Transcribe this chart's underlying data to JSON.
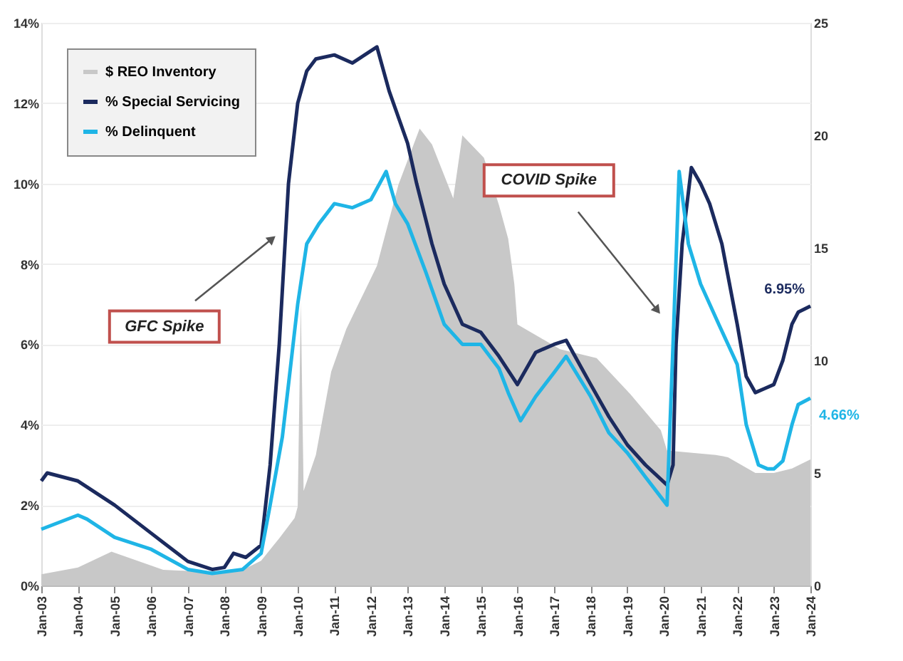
{
  "chart_data": {
    "type": "line",
    "xlim": [
      "2003-01",
      "2024-01"
    ],
    "xticks": [
      {
        "value": "2003-01",
        "label": "Jan-03"
      },
      {
        "value": "2004-01",
        "label": "Jan-04"
      },
      {
        "value": "2005-01",
        "label": "Jan-05"
      },
      {
        "value": "2006-01",
        "label": "Jan-06"
      },
      {
        "value": "2007-01",
        "label": "Jan-07"
      },
      {
        "value": "2008-01",
        "label": "Jan-08"
      },
      {
        "value": "2009-01",
        "label": "Jan-09"
      },
      {
        "value": "2010-01",
        "label": "Jan-10"
      },
      {
        "value": "2011-01",
        "label": "Jan-11"
      },
      {
        "value": "2012-01",
        "label": "Jan-12"
      },
      {
        "value": "2013-01",
        "label": "Jan-13"
      },
      {
        "value": "2014-01",
        "label": "Jan-14"
      },
      {
        "value": "2015-01",
        "label": "Jan-15"
      },
      {
        "value": "2016-01",
        "label": "Jan-16"
      },
      {
        "value": "2017-01",
        "label": "Jan-17"
      },
      {
        "value": "2018-01",
        "label": "Jan-18"
      },
      {
        "value": "2019-01",
        "label": "Jan-19"
      },
      {
        "value": "2020-01",
        "label": "Jan-20"
      },
      {
        "value": "2021-01",
        "label": "Jan-21"
      },
      {
        "value": "2022-01",
        "label": "Jan-22"
      },
      {
        "value": "2023-01",
        "label": "Jan-23"
      },
      {
        "value": "2024-01",
        "label": "Jan-24"
      }
    ],
    "ylim": [
      0,
      14
    ],
    "yticks": [
      {
        "value": 0,
        "label": "0%"
      },
      {
        "value": 2,
        "label": "2%"
      },
      {
        "value": 4,
        "label": "4%"
      },
      {
        "value": 6,
        "label": "6%"
      },
      {
        "value": 8,
        "label": "8%"
      },
      {
        "value": 10,
        "label": "10%"
      },
      {
        "value": 12,
        "label": "12%"
      },
      {
        "value": 14,
        "label": "14%"
      }
    ],
    "y2lim": [
      0,
      25
    ],
    "y2ticks": [
      0,
      5,
      10,
      15,
      20,
      25
    ],
    "grid": "y",
    "legend": "top left",
    "marker": "none",
    "line_style": "solid",
    "series": [
      {
        "name": "$ REO Inventory",
        "type": "area",
        "axis": "y2",
        "color": "#c8c8c8",
        "x": [
          "2003-01",
          "2004-01",
          "2004-12",
          "2006-05",
          "2007-08",
          "2008-07",
          "2009-01",
          "2009-07",
          "2009-12",
          "2010-01",
          "2010-02",
          "2010-03",
          "2010-07",
          "2010-12",
          "2011-05",
          "2012-03",
          "2012-10",
          "2013-05",
          "2013-09",
          "2014-04",
          "2014-07",
          "2015-02",
          "2015-07",
          "2015-10",
          "2015-12",
          "2016-01",
          "2017-03",
          "2018-03",
          "2019-02",
          "2019-12",
          "2020-02",
          "2021-06",
          "2021-10",
          "2022-07",
          "2023-01",
          "2023-07",
          "2024-01"
        ],
        "values": [
          0.5,
          0.8,
          1.5,
          0.7,
          0.6,
          0.7,
          1.1,
          2.1,
          3.0,
          3.5,
          12.6,
          4.2,
          5.8,
          9.5,
          11.4,
          14.2,
          17.8,
          20.3,
          19.6,
          17.2,
          20.0,
          19.0,
          16.9,
          15.4,
          13.4,
          11.6,
          10.5,
          10.1,
          8.5,
          6.9,
          6.0,
          5.8,
          5.7,
          5.0,
          5.0,
          5.2,
          5.6
        ]
      },
      {
        "name": "% Special Servicing",
        "color": "#1b2a5e",
        "x": [
          "2003-01",
          "2003-03",
          "2004-01",
          "2005-01",
          "2006-01",
          "2007-01",
          "2007-09",
          "2008-01",
          "2008-04",
          "2008-08",
          "2009-01",
          "2009-04",
          "2009-07",
          "2009-10",
          "2010-01",
          "2010-04",
          "2010-07",
          "2011-01",
          "2011-07",
          "2012-03",
          "2012-07",
          "2013-01",
          "2013-04",
          "2013-09",
          "2014-01",
          "2014-07",
          "2015-01",
          "2015-07",
          "2016-01",
          "2016-07",
          "2017-01",
          "2017-05",
          "2018-01",
          "2018-07",
          "2019-01",
          "2019-07",
          "2020-02",
          "2020-04",
          "2020-05",
          "2020-07",
          "2020-10",
          "2021-01",
          "2021-04",
          "2021-08",
          "2022-01",
          "2022-04",
          "2022-07",
          "2022-10",
          "2023-01",
          "2023-04",
          "2023-07",
          "2023-09",
          "2024-01"
        ],
        "values": [
          2.6,
          2.8,
          2.6,
          2.0,
          1.3,
          0.6,
          0.4,
          0.45,
          0.8,
          0.7,
          1.0,
          3.0,
          6.0,
          10.0,
          12.0,
          12.8,
          13.1,
          13.2,
          13.0,
          13.4,
          12.3,
          11.0,
          10.0,
          8.5,
          7.5,
          6.5,
          6.3,
          5.7,
          5.0,
          5.8,
          6.0,
          6.1,
          5.0,
          4.2,
          3.5,
          3.0,
          2.5,
          3.0,
          6.0,
          8.5,
          10.4,
          10.0,
          9.5,
          8.5,
          6.5,
          5.2,
          4.8,
          4.9,
          5.0,
          5.6,
          6.5,
          6.8,
          6.95
        ]
      },
      {
        "name": "% Delinquent",
        "color": "#1fb5e6",
        "x": [
          "2003-01",
          "2004-01",
          "2004-04",
          "2005-01",
          "2006-01",
          "2007-01",
          "2007-09",
          "2008-07",
          "2009-01",
          "2009-04",
          "2009-08",
          "2009-10",
          "2010-01",
          "2010-04",
          "2010-08",
          "2011-01",
          "2011-07",
          "2012-01",
          "2012-06",
          "2012-09",
          "2013-01",
          "2013-07",
          "2014-01",
          "2014-07",
          "2015-01",
          "2015-07",
          "2015-10",
          "2016-02",
          "2016-07",
          "2017-01",
          "2017-05",
          "2018-01",
          "2018-07",
          "2019-01",
          "2019-07",
          "2020-02",
          "2020-04",
          "2020-06",
          "2020-09",
          "2021-01",
          "2021-07",
          "2022-01",
          "2022-04",
          "2022-08",
          "2022-11",
          "2023-01",
          "2023-04",
          "2023-07",
          "2023-09",
          "2024-01"
        ],
        "values": [
          1.4,
          1.75,
          1.65,
          1.2,
          0.9,
          0.4,
          0.3,
          0.4,
          0.8,
          2.0,
          3.7,
          5.0,
          7.0,
          8.5,
          9.0,
          9.5,
          9.4,
          9.6,
          10.3,
          9.5,
          9.0,
          7.8,
          6.5,
          6.0,
          6.0,
          5.4,
          4.8,
          4.1,
          4.7,
          5.3,
          5.7,
          4.7,
          3.8,
          3.3,
          2.7,
          2.0,
          6.0,
          10.3,
          8.5,
          7.5,
          6.5,
          5.5,
          4.0,
          3.0,
          2.9,
          2.9,
          3.1,
          4.0,
          4.5,
          4.66
        ]
      }
    ],
    "annotations": [
      "GFC Spike",
      "COVID Spike",
      {
        "text": "6.95%",
        "x": "2024-01",
        "y": 6.95
      },
      {
        "text": "4.66%",
        "x": "2024-01",
        "y": 4.66
      }
    ]
  }
}
